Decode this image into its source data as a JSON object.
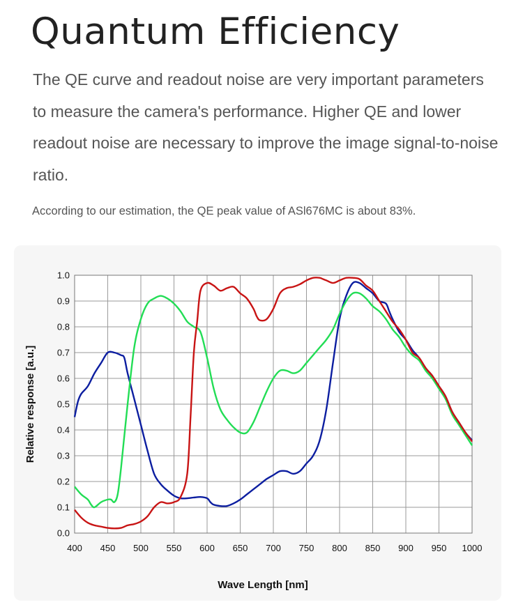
{
  "page": {
    "title": "Quantum Efficiency",
    "intro": "The QE curve and readout noise are very important parameters to measure the camera's performance. Higher QE and lower readout noise are necessary to improve the image signal-to-noise ratio.",
    "note": "According to our estimation, the QE peak value of ASl676MC is about 83%."
  },
  "chart_data": {
    "type": "line",
    "title": "",
    "xlabel": "Wave Length [nm]",
    "ylabel": "Relative  response [a.u.]",
    "xlim": [
      400,
      1000
    ],
    "ylim": [
      0,
      1.0
    ],
    "grid": true,
    "x_ticks": [
      "400",
      "450",
      "500",
      "550",
      "600",
      "650",
      "700",
      "750",
      "800",
      "850",
      "900",
      "950",
      "1000"
    ],
    "y_ticks": [
      "0.0",
      "0.1",
      "0.2",
      "0.3",
      "0.4",
      "0.5",
      "0.6",
      "0.7",
      "0.8",
      "0.9",
      "1.0"
    ],
    "series": [
      {
        "name": "Blue",
        "color": "#0c1ea0",
        "points": [
          [
            400,
            0.45
          ],
          [
            405,
            0.51
          ],
          [
            410,
            0.54
          ],
          [
            420,
            0.57
          ],
          [
            430,
            0.62
          ],
          [
            440,
            0.66
          ],
          [
            450,
            0.7
          ],
          [
            460,
            0.7
          ],
          [
            470,
            0.69
          ],
          [
            475,
            0.68
          ],
          [
            480,
            0.62
          ],
          [
            490,
            0.52
          ],
          [
            500,
            0.42
          ],
          [
            510,
            0.32
          ],
          [
            520,
            0.23
          ],
          [
            530,
            0.19
          ],
          [
            540,
            0.165
          ],
          [
            550,
            0.145
          ],
          [
            560,
            0.135
          ],
          [
            570,
            0.135
          ],
          [
            580,
            0.138
          ],
          [
            590,
            0.14
          ],
          [
            600,
            0.135
          ],
          [
            605,
            0.12
          ],
          [
            610,
            0.11
          ],
          [
            620,
            0.105
          ],
          [
            630,
            0.105
          ],
          [
            640,
            0.115
          ],
          [
            650,
            0.13
          ],
          [
            660,
            0.15
          ],
          [
            670,
            0.17
          ],
          [
            680,
            0.19
          ],
          [
            690,
            0.21
          ],
          [
            700,
            0.225
          ],
          [
            710,
            0.24
          ],
          [
            720,
            0.24
          ],
          [
            730,
            0.23
          ],
          [
            740,
            0.24
          ],
          [
            750,
            0.27
          ],
          [
            760,
            0.3
          ],
          [
            770,
            0.36
          ],
          [
            780,
            0.48
          ],
          [
            790,
            0.66
          ],
          [
            800,
            0.83
          ],
          [
            810,
            0.92
          ],
          [
            820,
            0.97
          ],
          [
            830,
            0.97
          ],
          [
            840,
            0.95
          ],
          [
            850,
            0.93
          ],
          [
            860,
            0.9
          ],
          [
            870,
            0.89
          ],
          [
            875,
            0.86
          ],
          [
            880,
            0.83
          ],
          [
            890,
            0.78
          ],
          [
            900,
            0.75
          ],
          [
            910,
            0.71
          ],
          [
            920,
            0.68
          ],
          [
            930,
            0.64
          ],
          [
            940,
            0.61
          ],
          [
            950,
            0.57
          ],
          [
            960,
            0.53
          ],
          [
            970,
            0.47
          ],
          [
            980,
            0.43
          ],
          [
            990,
            0.39
          ],
          [
            1000,
            0.36
          ]
        ]
      },
      {
        "name": "Green",
        "color": "#22dd55",
        "points": [
          [
            400,
            0.18
          ],
          [
            410,
            0.15
          ],
          [
            420,
            0.13
          ],
          [
            425,
            0.11
          ],
          [
            430,
            0.1
          ],
          [
            440,
            0.12
          ],
          [
            450,
            0.13
          ],
          [
            455,
            0.13
          ],
          [
            460,
            0.12
          ],
          [
            465,
            0.15
          ],
          [
            470,
            0.25
          ],
          [
            480,
            0.5
          ],
          [
            490,
            0.72
          ],
          [
            500,
            0.83
          ],
          [
            510,
            0.89
          ],
          [
            520,
            0.91
          ],
          [
            530,
            0.92
          ],
          [
            540,
            0.91
          ],
          [
            550,
            0.89
          ],
          [
            560,
            0.86
          ],
          [
            570,
            0.82
          ],
          [
            580,
            0.8
          ],
          [
            590,
            0.78
          ],
          [
            600,
            0.68
          ],
          [
            610,
            0.56
          ],
          [
            620,
            0.48
          ],
          [
            630,
            0.44
          ],
          [
            640,
            0.41
          ],
          [
            650,
            0.39
          ],
          [
            660,
            0.39
          ],
          [
            670,
            0.43
          ],
          [
            680,
            0.49
          ],
          [
            690,
            0.55
          ],
          [
            700,
            0.6
          ],
          [
            710,
            0.63
          ],
          [
            720,
            0.63
          ],
          [
            730,
            0.62
          ],
          [
            740,
            0.63
          ],
          [
            750,
            0.66
          ],
          [
            760,
            0.69
          ],
          [
            770,
            0.72
          ],
          [
            780,
            0.75
          ],
          [
            790,
            0.79
          ],
          [
            800,
            0.85
          ],
          [
            810,
            0.9
          ],
          [
            820,
            0.93
          ],
          [
            830,
            0.93
          ],
          [
            840,
            0.91
          ],
          [
            850,
            0.88
          ],
          [
            860,
            0.86
          ],
          [
            870,
            0.83
          ],
          [
            880,
            0.79
          ],
          [
            890,
            0.76
          ],
          [
            900,
            0.72
          ],
          [
            910,
            0.69
          ],
          [
            920,
            0.67
          ],
          [
            930,
            0.63
          ],
          [
            940,
            0.6
          ],
          [
            950,
            0.56
          ],
          [
            960,
            0.52
          ],
          [
            970,
            0.46
          ],
          [
            980,
            0.42
          ],
          [
            990,
            0.38
          ],
          [
            1000,
            0.34
          ]
        ]
      },
      {
        "name": "Red",
        "color": "#c81414",
        "points": [
          [
            400,
            0.09
          ],
          [
            410,
            0.06
          ],
          [
            420,
            0.04
          ],
          [
            430,
            0.03
          ],
          [
            440,
            0.025
          ],
          [
            450,
            0.02
          ],
          [
            460,
            0.018
          ],
          [
            470,
            0.02
          ],
          [
            480,
            0.03
          ],
          [
            490,
            0.035
          ],
          [
            500,
            0.045
          ],
          [
            510,
            0.065
          ],
          [
            520,
            0.1
          ],
          [
            530,
            0.12
          ],
          [
            540,
            0.115
          ],
          [
            550,
            0.12
          ],
          [
            560,
            0.14
          ],
          [
            570,
            0.23
          ],
          [
            575,
            0.45
          ],
          [
            580,
            0.7
          ],
          [
            585,
            0.82
          ],
          [
            590,
            0.94
          ],
          [
            600,
            0.97
          ],
          [
            610,
            0.96
          ],
          [
            620,
            0.94
          ],
          [
            630,
            0.95
          ],
          [
            640,
            0.955
          ],
          [
            650,
            0.93
          ],
          [
            660,
            0.91
          ],
          [
            670,
            0.87
          ],
          [
            675,
            0.84
          ],
          [
            680,
            0.825
          ],
          [
            690,
            0.83
          ],
          [
            700,
            0.87
          ],
          [
            710,
            0.93
          ],
          [
            720,
            0.95
          ],
          [
            730,
            0.955
          ],
          [
            740,
            0.965
          ],
          [
            750,
            0.98
          ],
          [
            760,
            0.99
          ],
          [
            770,
            0.99
          ],
          [
            775,
            0.985
          ],
          [
            780,
            0.98
          ],
          [
            790,
            0.97
          ],
          [
            800,
            0.98
          ],
          [
            810,
            0.99
          ],
          [
            820,
            0.99
          ],
          [
            830,
            0.985
          ],
          [
            840,
            0.96
          ],
          [
            850,
            0.94
          ],
          [
            860,
            0.9
          ],
          [
            870,
            0.86
          ],
          [
            880,
            0.82
          ],
          [
            890,
            0.79
          ],
          [
            900,
            0.75
          ],
          [
            910,
            0.7
          ],
          [
            920,
            0.68
          ],
          [
            930,
            0.64
          ],
          [
            940,
            0.61
          ],
          [
            950,
            0.57
          ],
          [
            960,
            0.53
          ],
          [
            970,
            0.47
          ],
          [
            980,
            0.43
          ],
          [
            990,
            0.39
          ],
          [
            1000,
            0.355
          ]
        ]
      }
    ]
  }
}
